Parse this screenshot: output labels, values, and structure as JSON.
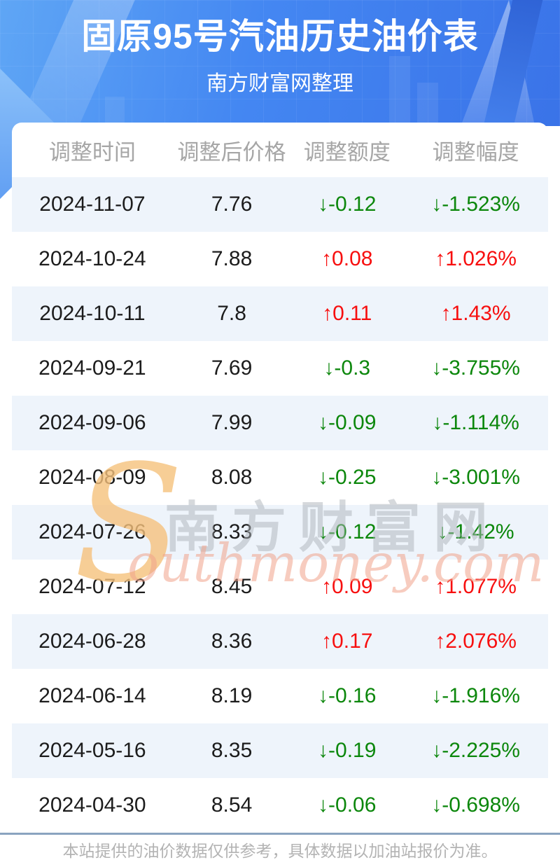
{
  "header": {
    "title": "固原95号汽油历史油价表",
    "subtitle": "南方财富网整理"
  },
  "chart_data": {
    "type": "table",
    "title": "固原95号汽油历史油价表",
    "columns": [
      "调整时间",
      "调整后价格",
      "调整额度",
      "调整幅度"
    ],
    "rows": [
      {
        "date": "2024-11-07",
        "price": "7.76",
        "change": "-0.12",
        "change_pct": "-1.523%",
        "direction": "down"
      },
      {
        "date": "2024-10-24",
        "price": "7.88",
        "change": "0.08",
        "change_pct": "1.026%",
        "direction": "up"
      },
      {
        "date": "2024-10-11",
        "price": "7.8",
        "change": "0.11",
        "change_pct": "1.43%",
        "direction": "up"
      },
      {
        "date": "2024-09-21",
        "price": "7.69",
        "change": "-0.3",
        "change_pct": "-3.755%",
        "direction": "down"
      },
      {
        "date": "2024-09-06",
        "price": "7.99",
        "change": "-0.09",
        "change_pct": "-1.114%",
        "direction": "down"
      },
      {
        "date": "2024-08-09",
        "price": "8.08",
        "change": "-0.25",
        "change_pct": "-3.001%",
        "direction": "down"
      },
      {
        "date": "2024-07-26",
        "price": "8.33",
        "change": "-0.12",
        "change_pct": "-1.42%",
        "direction": "down"
      },
      {
        "date": "2024-07-12",
        "price": "8.45",
        "change": "0.09",
        "change_pct": "1.077%",
        "direction": "up"
      },
      {
        "date": "2024-06-28",
        "price": "8.36",
        "change": "0.17",
        "change_pct": "2.076%",
        "direction": "up"
      },
      {
        "date": "2024-06-14",
        "price": "8.19",
        "change": "-0.16",
        "change_pct": "-1.916%",
        "direction": "down"
      },
      {
        "date": "2024-05-16",
        "price": "8.35",
        "change": "-0.19",
        "change_pct": "-2.225%",
        "direction": "down"
      },
      {
        "date": "2024-04-30",
        "price": "8.54",
        "change": "-0.06",
        "change_pct": "-0.698%",
        "direction": "down"
      }
    ]
  },
  "ui": {
    "arrow_up": "↑",
    "arrow_down": "↓"
  },
  "watermark": {
    "initial": "S",
    "cjk": "南方财富网",
    "latin": "outhmoney.com"
  },
  "footer": {
    "note": "本站提供的油价数据仅供参考，具体数据以加油站报价为准。"
  },
  "colors": {
    "up_red": "#f70f0f",
    "down_green": "#0c870c",
    "hero_blue": "#4487f2",
    "stripe_blue": "#eef4fb",
    "divider_slate": "#8aa4c0"
  }
}
